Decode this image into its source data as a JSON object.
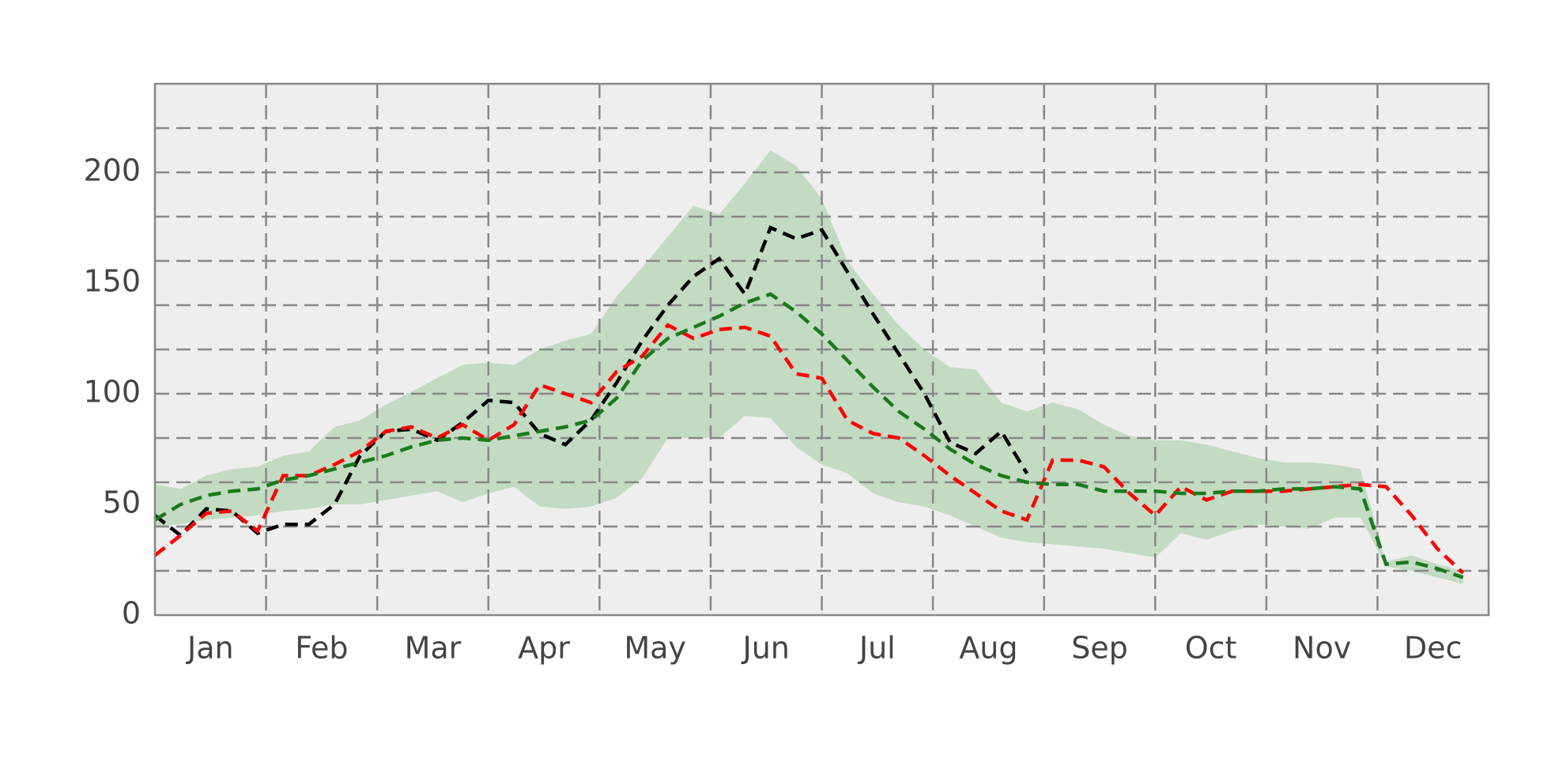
{
  "chart_data": {
    "type": "line",
    "categories": [
      "Jan",
      "Feb",
      "Mar",
      "Apr",
      "May",
      "Jun",
      "Jul",
      "Aug",
      "Sep",
      "Oct",
      "Nov",
      "Dec"
    ],
    "x": [
      0,
      1,
      2,
      3,
      4,
      5,
      6,
      7,
      8,
      9,
      10,
      11,
      12,
      13,
      14,
      15,
      16,
      17,
      18,
      19,
      20,
      21,
      22,
      23,
      24,
      25,
      26,
      27,
      28,
      29,
      30,
      31,
      32,
      33,
      34,
      35,
      36,
      37,
      38,
      39,
      40,
      41,
      42,
      43,
      44,
      45,
      46,
      47,
      48,
      49,
      50,
      51
    ],
    "xlim": [
      0,
      52
    ],
    "ylim": [
      0,
      240
    ],
    "yticks": [
      0,
      50,
      100,
      150,
      200
    ],
    "ygrid": [
      20,
      40,
      60,
      80,
      100,
      120,
      140,
      160,
      180,
      200,
      220
    ],
    "grid": true,
    "band": {
      "color": "#c3dbc3",
      "lower": [
        40,
        41,
        43,
        44,
        45,
        47,
        48,
        50,
        50,
        52,
        54,
        56,
        51,
        55,
        58,
        49,
        48,
        49,
        53,
        62,
        80,
        80,
        80,
        90,
        89,
        76,
        68,
        64,
        55,
        51,
        49,
        45,
        40,
        35,
        33,
        32,
        31,
        30,
        28,
        26,
        37,
        34,
        38,
        41,
        40,
        39,
        44,
        44,
        22,
        20,
        17,
        14
      ],
      "upper": [
        59,
        57,
        63,
        66,
        67,
        72,
        74,
        85,
        88,
        95,
        101,
        107,
        113,
        114,
        113,
        120,
        124,
        127,
        144,
        157,
        171,
        185,
        181,
        195,
        210,
        203,
        188,
        160,
        145,
        131,
        120,
        112,
        111,
        96,
        92,
        96,
        93,
        86,
        81,
        79,
        79,
        77,
        74,
        71,
        69,
        69,
        68,
        66,
        24,
        27,
        23,
        20
      ]
    },
    "series": [
      {
        "color": "#000000",
        "values": [
          45,
          36,
          48,
          47,
          37,
          41,
          41,
          50,
          72,
          83,
          84,
          79,
          87,
          97,
          96,
          82,
          77,
          88,
          105,
          124,
          140,
          153,
          161,
          145,
          175,
          170,
          174,
          155,
          136,
          118,
          100,
          78,
          73,
          83,
          64,
          null,
          null,
          null,
          null,
          null,
          null,
          null,
          null,
          null,
          null,
          null,
          null,
          null,
          null,
          null,
          null,
          null
        ]
      },
      {
        "color": "#ff0000",
        "values": [
          27,
          36,
          46,
          47,
          38,
          63,
          63,
          68,
          74,
          83,
          85,
          80,
          86,
          79,
          86,
          104,
          100,
          96,
          110,
          117,
          131,
          125,
          129,
          130,
          126,
          109,
          107,
          88,
          82,
          80,
          72,
          63,
          55,
          47,
          43,
          70,
          70,
          67,
          55,
          45,
          58,
          52,
          56,
          56,
          56,
          57,
          58,
          59,
          58,
          45,
          30,
          19
        ]
      },
      {
        "color": "#1a7a1a",
        "values": [
          43,
          50,
          54,
          56,
          57,
          61,
          63,
          66,
          69,
          72,
          76,
          79,
          80,
          79,
          81,
          83,
          85,
          88,
          98,
          115,
          125,
          130,
          135,
          141,
          145,
          137,
          127,
          115,
          103,
          92,
          84,
          75,
          68,
          63,
          60,
          59,
          59,
          56,
          56,
          56,
          55,
          55,
          56,
          56,
          57,
          57,
          58,
          57,
          23,
          24,
          21,
          17
        ]
      }
    ]
  }
}
